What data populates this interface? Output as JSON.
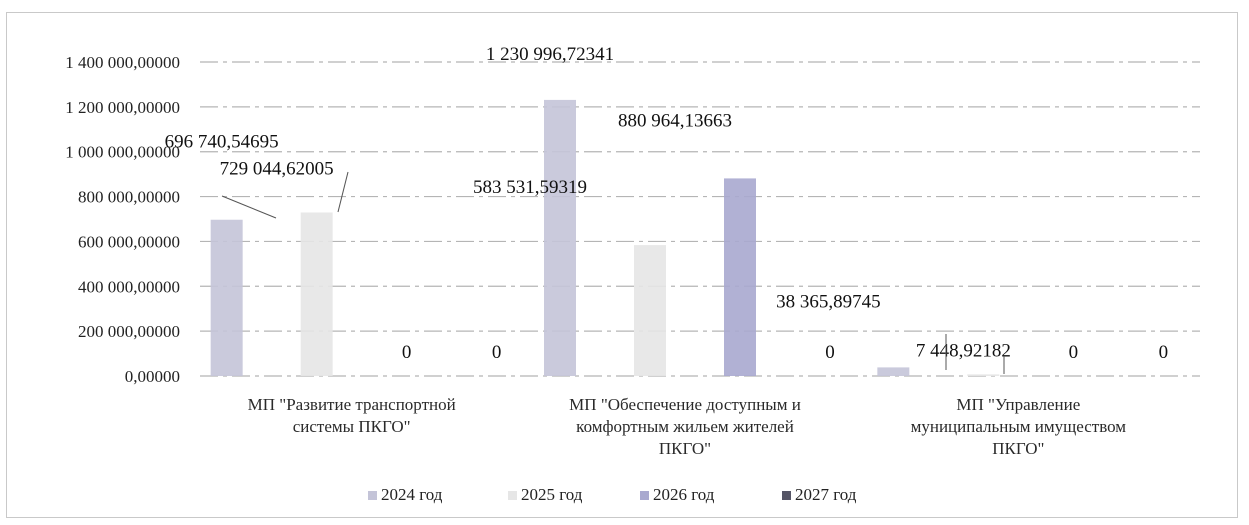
{
  "chart_data": {
    "type": "bar",
    "title": "",
    "xlabel": "",
    "ylabel": "",
    "ylim": [
      0,
      1400000
    ],
    "yticks": [
      0,
      200000,
      400000,
      600000,
      800000,
      1000000,
      1200000,
      1400000
    ],
    "ytick_labels": [
      "0,00000",
      "200 000,00000",
      "400 000,00000",
      "600 000,00000",
      "800 000,00000",
      "1 000 000,00000",
      "1 200 000,00000",
      "1 400 000,00000"
    ],
    "grid": true,
    "legend_position": "bottom",
    "categories": [
      [
        "МП \"Развитие транспортной",
        "системы ПКГО\""
      ],
      [
        "МП \"Обеспечение доступным и",
        "комфортным жильем жителей",
        "ПКГО\""
      ],
      [
        "МП \"Управление",
        "муниципальным имуществом",
        "ПКГО\""
      ]
    ],
    "series": [
      {
        "name": "2024 год",
        "color": "#c4c4d8",
        "values": [
          696740.54695,
          1230996.72341,
          38365.89745
        ],
        "labels": [
          "696 740,54695",
          "1 230 996,72341",
          "38 365,89745"
        ]
      },
      {
        "name": "2025 год",
        "color": "#e6e6e6",
        "values": [
          729044.62005,
          583531.59319,
          7448.92182
        ],
        "labels": [
          "729 044,62005",
          "583 531,59319",
          "7 448,92182"
        ]
      },
      {
        "name": "2026 год",
        "color": "#a9a9cf",
        "values": [
          0,
          880964.13663,
          0
        ],
        "labels": [
          "0",
          "880 964,13663",
          "0"
        ]
      },
      {
        "name": "2027 год",
        "color": "#555566",
        "values": [
          0,
          0,
          0
        ],
        "labels": [
          "0",
          "0",
          "0"
        ]
      }
    ]
  }
}
